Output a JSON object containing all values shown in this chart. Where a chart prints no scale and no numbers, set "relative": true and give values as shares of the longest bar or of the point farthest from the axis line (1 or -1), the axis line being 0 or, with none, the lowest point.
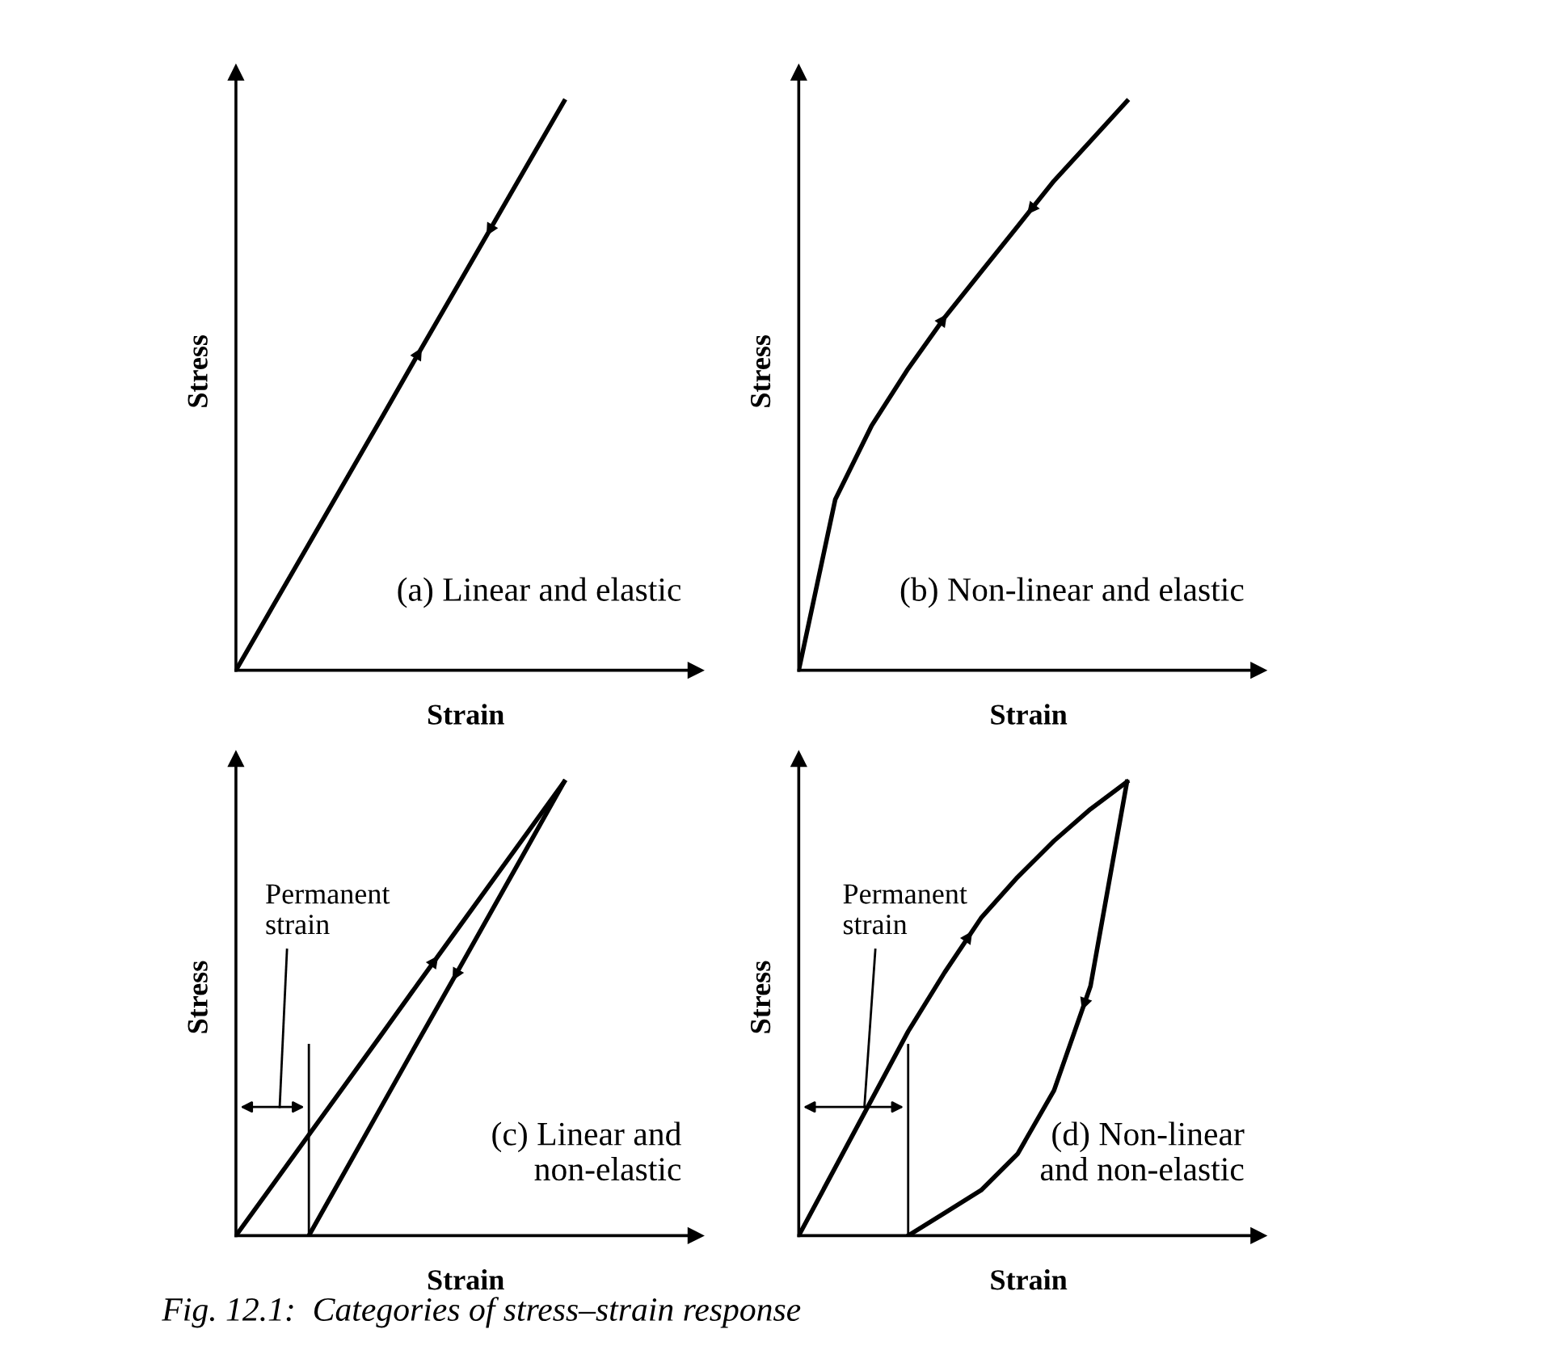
{
  "chart_data": [
    {
      "type": "line",
      "relative": true,
      "title": "(a) Linear and elastic",
      "xlabel": "Strain",
      "ylabel": "Stress",
      "categories": [
        null,
        null,
        null,
        null,
        null,
        null,
        null,
        null,
        null,
        null
      ],
      "series": [
        {
          "color": "#000000",
          "values": [
            0,
            0.111,
            0.222,
            0.333,
            0.444,
            0.556,
            0.667,
            0.778,
            0.889,
            1
          ]
        }
      ]
    },
    {
      "type": "line",
      "relative": true,
      "title": "(b) Non-linear and elastic",
      "xlabel": "Strain",
      "ylabel": "Stress",
      "categories": [
        null,
        null,
        null,
        null,
        null,
        null,
        null,
        null,
        null,
        null
      ],
      "series": [
        {
          "color": "#000000",
          "values": [
            0,
            0.3,
            0.43,
            0.53,
            0.62,
            0.7,
            0.78,
            0.86,
            0.93,
            1
          ]
        }
      ]
    },
    {
      "type": "line",
      "relative": true,
      "title": "(c) Linear and\nnon-elastic",
      "xlabel": "Strain",
      "ylabel": "Stress",
      "categories": [
        null,
        null,
        null,
        null,
        null,
        null,
        null,
        null,
        null,
        null
      ],
      "annotations": [
        "Permanent\nstrain"
      ],
      "series": [
        {
          "color": "#000000",
          "values": [
            0,
            0.111,
            0.222,
            0.333,
            0.444,
            0.556,
            0.667,
            0.778,
            0.889,
            1
          ]
        },
        {
          "color": "#000000",
          "values": [
            null,
            null,
            0,
            0.143,
            0.286,
            0.429,
            0.571,
            0.714,
            0.857,
            1
          ]
        }
      ]
    },
    {
      "type": "line",
      "relative": true,
      "title": "(d) Non-linear\nand non-elastic",
      "xlabel": "Strain",
      "ylabel": "Stress",
      "categories": [
        null,
        null,
        null,
        null,
        null,
        null,
        null,
        null,
        null,
        null
      ],
      "annotations": [
        "Permanent\nstrain",
        "Fig. 12.1:  Categories of stress–strain response"
      ],
      "series": [
        {
          "color": "#000000",
          "values": [
            0,
            0.15,
            0.3,
            0.45,
            0.58,
            0.7,
            0.79,
            0.87,
            0.94,
            1
          ]
        },
        {
          "color": "#000000",
          "values": [
            null,
            null,
            null,
            0,
            0.05,
            0.1,
            0.18,
            0.32,
            0.55,
            1
          ]
        }
      ]
    }
  ]
}
